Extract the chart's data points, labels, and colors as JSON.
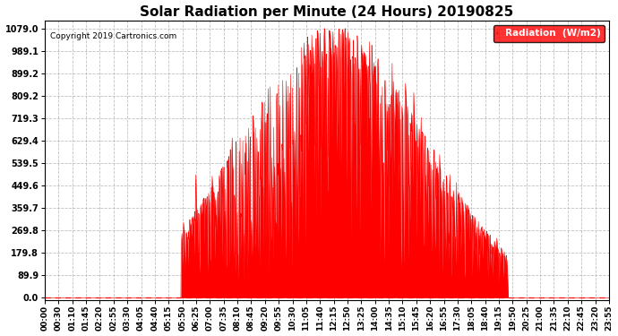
{
  "title": "Solar Radiation per Minute (24 Hours) 20190825",
  "copyright_text": "Copyright 2019 Cartronics.com",
  "legend_label": "Radiation  (W/m2)",
  "background_color": "#ffffff",
  "plot_bg_color": "#ffffff",
  "fill_color": "#ff0000",
  "line_color": "#ff0000",
  "grid_color": "#b0b0b0",
  "ytick_values": [
    0.0,
    89.9,
    179.8,
    269.8,
    359.7,
    449.6,
    539.5,
    629.4,
    719.3,
    809.2,
    899.2,
    989.1,
    1079.0
  ],
  "ymax": 1110,
  "ymin": -10,
  "total_minutes": 1440,
  "sunrise_minute": 348,
  "sunset_minute": 1182,
  "peak_minute": 735,
  "peak_value": 1079.0,
  "xtick_labels": [
    "00:00",
    "00:30",
    "01:10",
    "01:45",
    "02:20",
    "02:55",
    "03:30",
    "04:05",
    "04:40",
    "05:15",
    "05:50",
    "06:25",
    "07:00",
    "07:35",
    "08:10",
    "08:45",
    "09:20",
    "09:55",
    "10:30",
    "11:05",
    "11:40",
    "12:15",
    "12:50",
    "13:25",
    "14:00",
    "14:35",
    "15:10",
    "15:45",
    "16:20",
    "16:55",
    "17:30",
    "18:05",
    "18:40",
    "19:15",
    "19:50",
    "20:25",
    "21:00",
    "21:35",
    "22:10",
    "22:45",
    "23:20",
    "23:55"
  ]
}
